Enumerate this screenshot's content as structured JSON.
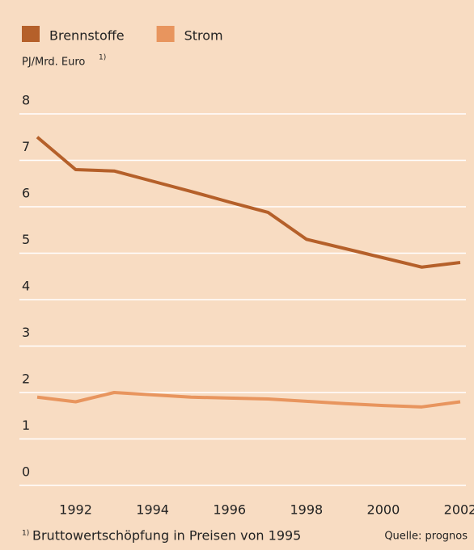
{
  "chart_data": {
    "type": "line",
    "y_label": "PJ/Mrd. Euro",
    "y_label_note": "1)",
    "x": [
      1991,
      1992,
      1993,
      1994,
      1995,
      1996,
      1997,
      1998,
      1999,
      2000,
      2001,
      2002
    ],
    "series": [
      {
        "name": "Brennstoffe",
        "color": "#b5602a",
        "values": [
          7.5,
          6.8,
          6.77,
          6.55,
          6.33,
          6.1,
          5.88,
          5.3,
          5.1,
          4.9,
          4.7,
          4.8
        ]
      },
      {
        "name": "Strom",
        "color": "#e8955e",
        "values": [
          1.9,
          1.8,
          2.0,
          1.95,
          1.9,
          1.88,
          1.86,
          1.81,
          1.76,
          1.72,
          1.69,
          1.8
        ]
      }
    ],
    "xlim": [
      1991,
      2002
    ],
    "xticks": [
      1992,
      1994,
      1996,
      1998,
      2000,
      2002
    ],
    "ylim": [
      0,
      8
    ],
    "yticks": [
      0,
      1,
      2,
      3,
      4,
      5,
      6,
      7,
      8
    ],
    "grid": true,
    "footnote_marker": "1)",
    "footnote": "Bruttowertschöpfung in Preisen von 1995",
    "source": "Quelle: prognos"
  }
}
